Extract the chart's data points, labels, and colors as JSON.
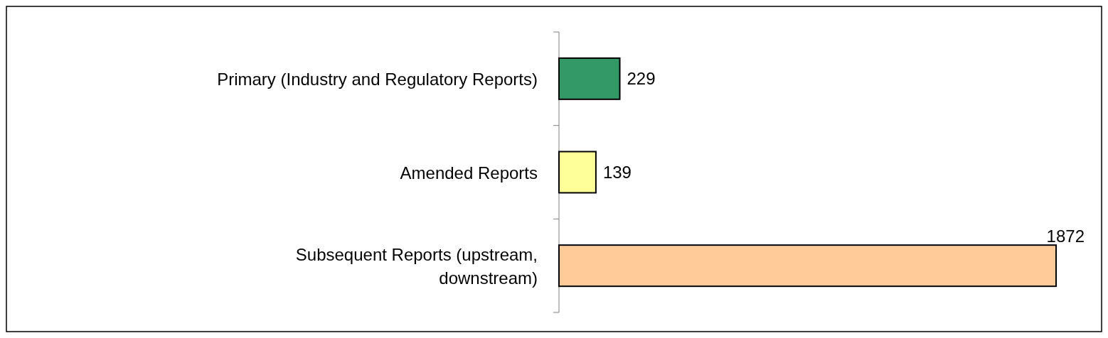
{
  "chart_data": {
    "type": "bar",
    "orientation": "horizontal",
    "categories": [
      "Primary (Industry and Regulatory Reports)",
      "Amended Reports",
      "Subsequent Reports (upstream, downstream)"
    ],
    "values": [
      229,
      139,
      1872
    ],
    "colors": [
      "#339966",
      "#ffff99",
      "#ffcc99"
    ],
    "data_labels": true
  }
}
